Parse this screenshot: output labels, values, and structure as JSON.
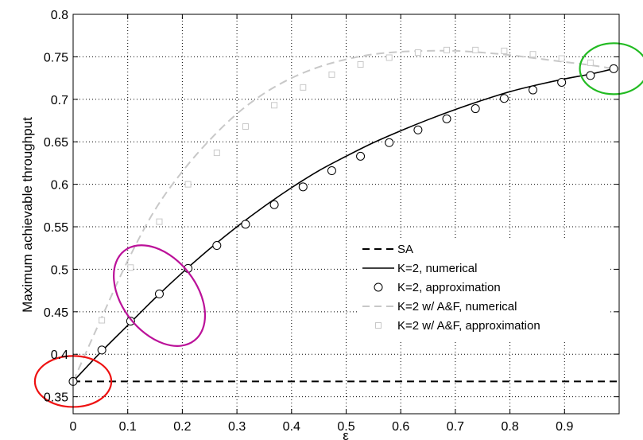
{
  "chart_data": {
    "type": "line",
    "title": "",
    "xlabel": "ε",
    "ylabel": "Maximum achievable throughput",
    "xlim": [
      0,
      1
    ],
    "ylim": [
      0.33,
      0.8
    ],
    "xticks": [
      "0",
      "0.1",
      "0.2",
      "0.3",
      "0.4",
      "0.5",
      "0.6",
      "0.7",
      "0.8",
      "0.9"
    ],
    "yticks": [
      "0.35",
      "0.4",
      "0.45",
      "0.5",
      "0.55",
      "0.6",
      "0.65",
      "0.7",
      "0.75",
      "0.8"
    ],
    "grid": true,
    "legend_position": "bottom-right",
    "series": [
      {
        "name": "SA",
        "style": "dashed",
        "color": "#000000",
        "x": [
          0,
          1
        ],
        "y": [
          0.368,
          0.368
        ]
      },
      {
        "name": "K=2, numerical",
        "style": "solid",
        "color": "#000000",
        "x": [
          0,
          0.05,
          0.1,
          0.15,
          0.2,
          0.25,
          0.3,
          0.35,
          0.4,
          0.45,
          0.5,
          0.55,
          0.6,
          0.65,
          0.7,
          0.75,
          0.8,
          0.85,
          0.9,
          0.95,
          0.99
        ],
        "y": [
          0.368,
          0.402,
          0.434,
          0.466,
          0.496,
          0.524,
          0.55,
          0.574,
          0.596,
          0.616,
          0.633,
          0.649,
          0.663,
          0.676,
          0.688,
          0.699,
          0.709,
          0.717,
          0.724,
          0.73,
          0.736
        ]
      },
      {
        "name": "K=2, approximation",
        "style": "marker-circle",
        "color": "#000000",
        "x": [
          0,
          0.0526,
          0.1053,
          0.1579,
          0.2105,
          0.2632,
          0.3158,
          0.3684,
          0.4211,
          0.4737,
          0.5263,
          0.5789,
          0.6316,
          0.6842,
          0.7368,
          0.7895,
          0.8421,
          0.8947,
          0.9474,
          0.99
        ],
        "y": [
          0.368,
          0.405,
          0.439,
          0.471,
          0.501,
          0.528,
          0.553,
          0.576,
          0.597,
          0.616,
          0.633,
          0.649,
          0.664,
          0.677,
          0.689,
          0.701,
          0.711,
          0.72,
          0.728,
          0.736
        ]
      },
      {
        "name": "K=2 w/ A&F, numerical",
        "style": "dashed",
        "color": "#c8c8c8",
        "x": [
          0,
          0.05,
          0.1,
          0.15,
          0.2,
          0.25,
          0.3,
          0.35,
          0.4,
          0.45,
          0.5,
          0.55,
          0.6,
          0.65,
          0.7,
          0.75,
          0.8,
          0.85,
          0.9,
          0.95,
          0.99
        ],
        "y": [
          0.368,
          0.44,
          0.51,
          0.57,
          0.615,
          0.652,
          0.683,
          0.707,
          0.725,
          0.738,
          0.747,
          0.753,
          0.756,
          0.757,
          0.757,
          0.755,
          0.752,
          0.748,
          0.744,
          0.74,
          0.736
        ]
      },
      {
        "name": "K=2 w/ A&F, approximation",
        "style": "marker-square",
        "color": "#c8c8c8",
        "x": [
          0,
          0.0526,
          0.1053,
          0.1579,
          0.2105,
          0.2632,
          0.3158,
          0.3684,
          0.4211,
          0.4737,
          0.5263,
          0.5789,
          0.6316,
          0.6842,
          0.7368,
          0.7895,
          0.8421,
          0.8947,
          0.9474,
          0.99
        ],
        "y": [
          0.368,
          0.44,
          0.502,
          0.556,
          0.6,
          0.637,
          0.668,
          0.693,
          0.714,
          0.729,
          0.741,
          0.749,
          0.755,
          0.758,
          0.758,
          0.757,
          0.753,
          0.748,
          0.743,
          0.737
        ]
      }
    ],
    "annotations": [
      {
        "shape": "ellipse",
        "color": "#ee1111",
        "cx": 0,
        "cy": 0.368,
        "rx": 0.07,
        "ry": 0.03
      },
      {
        "shape": "ellipse",
        "color": "#bb1199",
        "cx": 0.158,
        "cy": 0.469,
        "rx": 0.068,
        "ry": 0.067,
        "rotate": -38
      },
      {
        "shape": "ellipse",
        "color": "#22bb22",
        "cx": 0.99,
        "cy": 0.736,
        "rx": 0.062,
        "ry": 0.03
      }
    ]
  }
}
